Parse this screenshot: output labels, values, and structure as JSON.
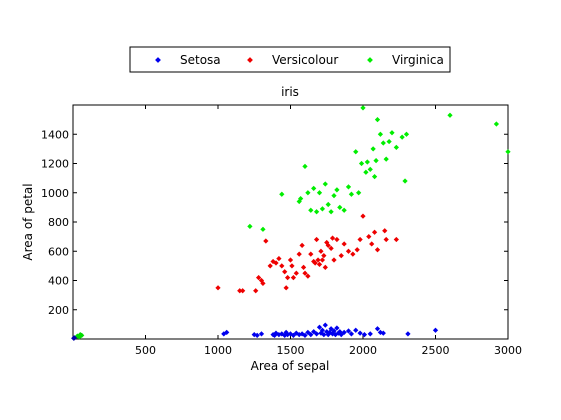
{
  "chart_data": {
    "type": "scatter",
    "title": "iris",
    "xlabel": "Area of sepal",
    "ylabel": "Area of petal",
    "xlim": [
      0,
      3000
    ],
    "ylim": [
      0,
      1600
    ],
    "xticks": [
      500,
      1000,
      1500,
      2000,
      2500,
      3000
    ],
    "yticks": [
      200,
      400,
      600,
      800,
      1000,
      1200,
      1400
    ],
    "grid": false,
    "legend_position": "top-center",
    "series": [
      {
        "name": "Setosa",
        "color": "#0000ee",
        "points": [
          [
            1040,
            35
          ],
          [
            1060,
            45
          ],
          [
            1250,
            30
          ],
          [
            1270,
            25
          ],
          [
            1300,
            35
          ],
          [
            1380,
            30
          ],
          [
            1390,
            25
          ],
          [
            1400,
            40
          ],
          [
            1420,
            30
          ],
          [
            1440,
            35
          ],
          [
            1460,
            25
          ],
          [
            1470,
            45
          ],
          [
            1480,
            30
          ],
          [
            1500,
            35
          ],
          [
            1520,
            25
          ],
          [
            1540,
            40
          ],
          [
            1560,
            30
          ],
          [
            1580,
            35
          ],
          [
            1600,
            25
          ],
          [
            1620,
            45
          ],
          [
            1640,
            30
          ],
          [
            1660,
            50
          ],
          [
            1680,
            35
          ],
          [
            1700,
            80
          ],
          [
            1710,
            40
          ],
          [
            1720,
            60
          ],
          [
            1730,
            30
          ],
          [
            1740,
            95
          ],
          [
            1750,
            50
          ],
          [
            1760,
            30
          ],
          [
            1770,
            45
          ],
          [
            1780,
            70
          ],
          [
            1790,
            35
          ],
          [
            1800,
            55
          ],
          [
            1810,
            30
          ],
          [
            1820,
            75
          ],
          [
            1830,
            40
          ],
          [
            1840,
            50
          ],
          [
            1850,
            30
          ],
          [
            1870,
            45
          ],
          [
            1900,
            55
          ],
          [
            1920,
            35
          ],
          [
            1950,
            60
          ],
          [
            1980,
            40
          ],
          [
            2010,
            30
          ],
          [
            2050,
            35
          ],
          [
            2100,
            70
          ],
          [
            2120,
            45
          ],
          [
            2140,
            40
          ],
          [
            2310,
            35
          ],
          [
            2500,
            60
          ]
        ]
      },
      {
        "name": "Versicolour",
        "color": "#ee0000",
        "points": [
          [
            1000,
            350
          ],
          [
            1150,
            330
          ],
          [
            1170,
            330
          ],
          [
            1260,
            330
          ],
          [
            1280,
            420
          ],
          [
            1300,
            400
          ],
          [
            1310,
            380
          ],
          [
            1330,
            670
          ],
          [
            1360,
            500
          ],
          [
            1380,
            530
          ],
          [
            1400,
            520
          ],
          [
            1420,
            550
          ],
          [
            1440,
            500
          ],
          [
            1460,
            460
          ],
          [
            1470,
            350
          ],
          [
            1480,
            420
          ],
          [
            1500,
            540
          ],
          [
            1510,
            500
          ],
          [
            1520,
            420
          ],
          [
            1540,
            450
          ],
          [
            1560,
            580
          ],
          [
            1580,
            640
          ],
          [
            1590,
            490
          ],
          [
            1600,
            450
          ],
          [
            1620,
            430
          ],
          [
            1640,
            580
          ],
          [
            1660,
            530
          ],
          [
            1670,
            520
          ],
          [
            1680,
            680
          ],
          [
            1690,
            540
          ],
          [
            1700,
            510
          ],
          [
            1710,
            600
          ],
          [
            1720,
            540
          ],
          [
            1730,
            570
          ],
          [
            1740,
            490
          ],
          [
            1750,
            660
          ],
          [
            1760,
            640
          ],
          [
            1780,
            620
          ],
          [
            1790,
            690
          ],
          [
            1800,
            540
          ],
          [
            1820,
            680
          ],
          [
            1850,
            570
          ],
          [
            1870,
            650
          ],
          [
            1900,
            600
          ],
          [
            1930,
            580
          ],
          [
            1960,
            610
          ],
          [
            1980,
            680
          ],
          [
            2000,
            840
          ],
          [
            2040,
            700
          ],
          [
            2060,
            650
          ],
          [
            2080,
            730
          ],
          [
            2100,
            610
          ],
          [
            2150,
            740
          ],
          [
            2160,
            680
          ],
          [
            2230,
            680
          ]
        ]
      },
      {
        "name": "Virginica",
        "color": "#00ee00",
        "points": [
          [
            1220,
            770
          ],
          [
            1310,
            750
          ],
          [
            1440,
            990
          ],
          [
            1560,
            940
          ],
          [
            1570,
            960
          ],
          [
            1600,
            1180
          ],
          [
            1620,
            1000
          ],
          [
            1640,
            880
          ],
          [
            1660,
            1030
          ],
          [
            1680,
            870
          ],
          [
            1700,
            1000
          ],
          [
            1720,
            890
          ],
          [
            1740,
            1060
          ],
          [
            1760,
            920
          ],
          [
            1780,
            870
          ],
          [
            1800,
            980
          ],
          [
            1820,
            1020
          ],
          [
            1840,
            900
          ],
          [
            1870,
            880
          ],
          [
            1900,
            1040
          ],
          [
            1920,
            990
          ],
          [
            1950,
            1280
          ],
          [
            1970,
            1000
          ],
          [
            1990,
            1200
          ],
          [
            2000,
            1580
          ],
          [
            2020,
            1140
          ],
          [
            2030,
            1210
          ],
          [
            2050,
            1160
          ],
          [
            2070,
            1300
          ],
          [
            2080,
            1110
          ],
          [
            2090,
            1220
          ],
          [
            2100,
            1500
          ],
          [
            2120,
            1400
          ],
          [
            2140,
            1340
          ],
          [
            2160,
            1230
          ],
          [
            2180,
            1350
          ],
          [
            2200,
            1410
          ],
          [
            2230,
            1310
          ],
          [
            2270,
            1380
          ],
          [
            2290,
            1080
          ],
          [
            2300,
            1400
          ],
          [
            2600,
            1530
          ],
          [
            2920,
            1470
          ],
          [
            3000,
            1280
          ]
        ]
      },
      {
        "name": "",
        "color": "#00dd00",
        "points": [
          [
            30,
            20
          ],
          [
            50,
            30
          ],
          [
            60,
            25
          ],
          [
            45,
            15
          ]
        ]
      },
      {
        "name": "",
        "color": "#0000aa",
        "points": [
          [
            5,
            5
          ],
          [
            10,
            8
          ]
        ]
      }
    ]
  },
  "legend": {
    "items": [
      {
        "label": "Setosa",
        "color": "#0000ee"
      },
      {
        "label": "Versicolour",
        "color": "#ee0000"
      },
      {
        "label": "Virginica",
        "color": "#00ee00"
      }
    ]
  }
}
